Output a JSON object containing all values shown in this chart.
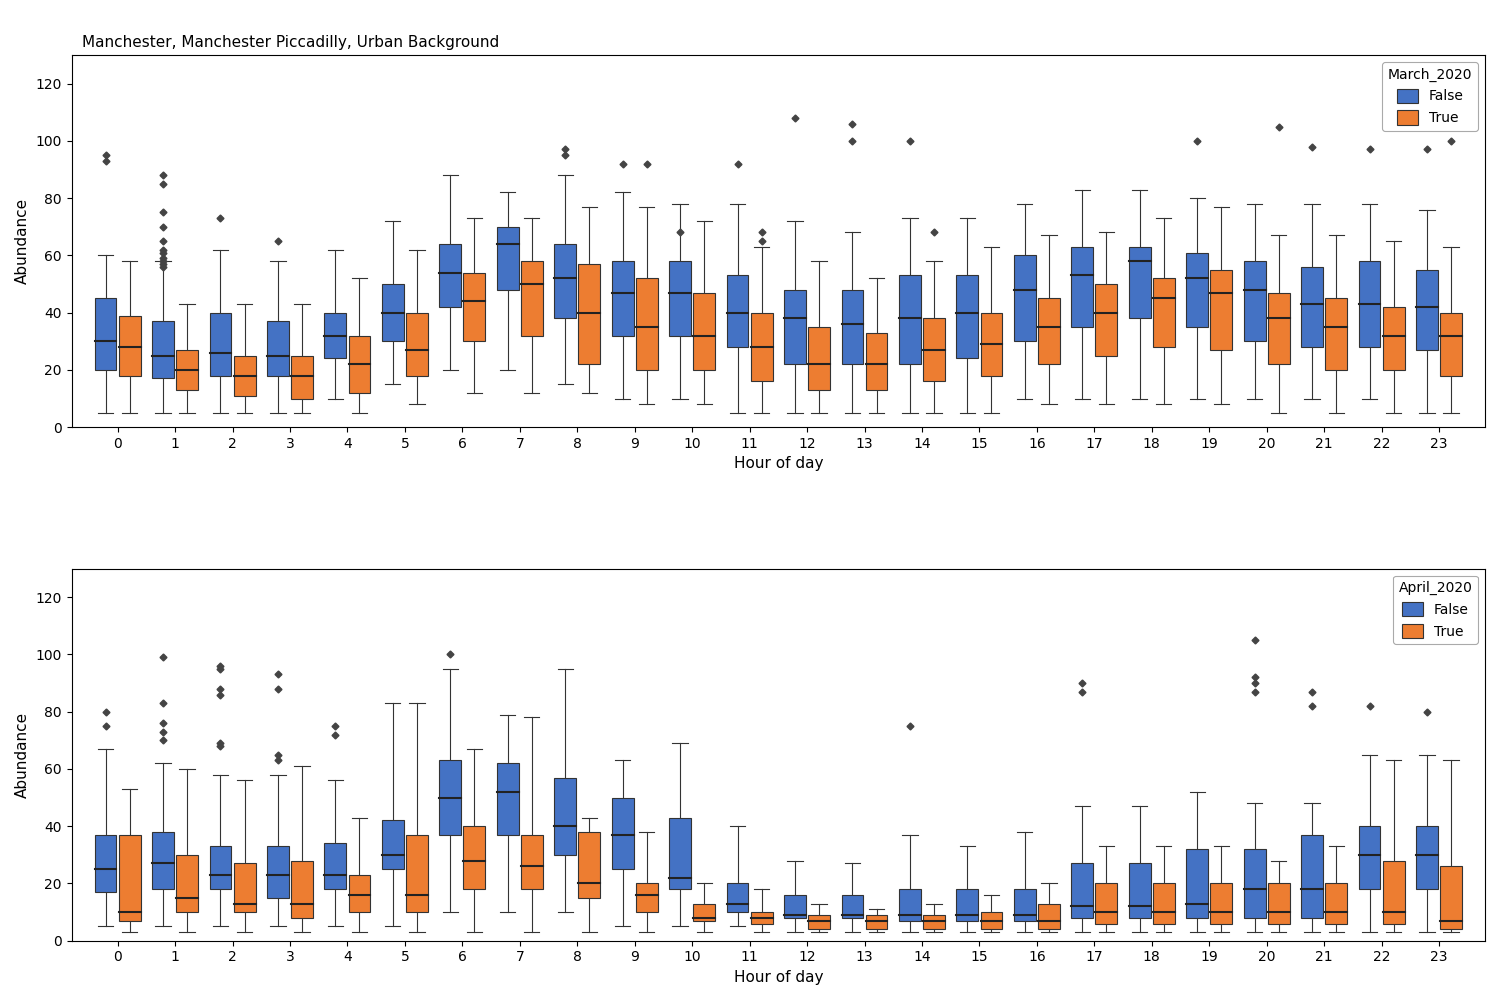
{
  "title": "Manchester, Manchester Piccadilly, Urban Background",
  "subplot1_title": "March_2020",
  "subplot2_title": "April_2020",
  "xlabel": "Hour of day",
  "ylabel": "Abundance",
  "colors": [
    "#4472C4",
    "#ED7D31"
  ],
  "hours": [
    0,
    1,
    2,
    3,
    4,
    5,
    6,
    7,
    8,
    9,
    10,
    11,
    12,
    13,
    14,
    15,
    16,
    17,
    18,
    19,
    20,
    21,
    22,
    23
  ],
  "march_false_whislo": [
    5,
    5,
    5,
    5,
    10,
    15,
    20,
    20,
    15,
    10,
    10,
    5,
    5,
    5,
    5,
    5,
    10,
    10,
    10,
    10,
    10,
    10,
    10,
    5
  ],
  "march_false_q1": [
    20,
    17,
    18,
    18,
    24,
    30,
    42,
    48,
    38,
    32,
    32,
    28,
    22,
    22,
    22,
    24,
    30,
    35,
    38,
    35,
    30,
    28,
    28,
    27
  ],
  "march_false_med": [
    30,
    25,
    26,
    25,
    32,
    40,
    54,
    64,
    52,
    47,
    47,
    40,
    38,
    36,
    38,
    40,
    48,
    53,
    58,
    52,
    48,
    43,
    43,
    42
  ],
  "march_false_q3": [
    45,
    37,
    40,
    37,
    40,
    50,
    64,
    70,
    64,
    58,
    58,
    53,
    48,
    48,
    53,
    53,
    60,
    63,
    63,
    61,
    58,
    56,
    58,
    55
  ],
  "march_false_whishi": [
    60,
    58,
    62,
    58,
    62,
    72,
    88,
    82,
    88,
    82,
    78,
    78,
    72,
    68,
    73,
    73,
    78,
    83,
    83,
    80,
    78,
    78,
    78,
    76
  ],
  "march_false_fliers": [
    [
      95,
      93
    ],
    [
      85,
      88,
      75,
      70,
      65,
      62,
      61,
      59,
      58,
      57,
      56
    ],
    [
      73
    ],
    [
      65
    ],
    [],
    [],
    [],
    [],
    [
      97,
      95
    ],
    [
      92
    ],
    [
      68
    ],
    [
      92
    ],
    [
      108
    ],
    [
      100,
      106
    ],
    [
      100
    ],
    [],
    [],
    [],
    [],
    [
      100
    ],
    [],
    [
      98
    ],
    [
      97
    ],
    [
      97
    ]
  ],
  "march_true_whislo": [
    5,
    5,
    5,
    5,
    5,
    8,
    12,
    12,
    12,
    8,
    8,
    5,
    5,
    5,
    5,
    5,
    8,
    8,
    8,
    8,
    5,
    5,
    5,
    5
  ],
  "march_true_q1": [
    18,
    13,
    11,
    10,
    12,
    18,
    30,
    32,
    22,
    20,
    20,
    16,
    13,
    13,
    16,
    18,
    22,
    25,
    28,
    27,
    22,
    20,
    20,
    18
  ],
  "march_true_med": [
    28,
    20,
    18,
    18,
    22,
    27,
    44,
    50,
    40,
    35,
    32,
    28,
    22,
    22,
    27,
    29,
    35,
    40,
    45,
    47,
    38,
    35,
    32,
    32
  ],
  "march_true_q3": [
    39,
    27,
    25,
    25,
    32,
    40,
    54,
    58,
    57,
    52,
    47,
    40,
    35,
    33,
    38,
    40,
    45,
    50,
    52,
    55,
    47,
    45,
    42,
    40
  ],
  "march_true_whishi": [
    58,
    43,
    43,
    43,
    52,
    62,
    73,
    73,
    77,
    77,
    72,
    63,
    58,
    52,
    58,
    63,
    67,
    68,
    73,
    77,
    67,
    67,
    65,
    63
  ],
  "march_true_fliers": [
    [],
    [],
    [],
    [],
    [],
    [],
    [],
    [],
    [],
    [
      92
    ],
    [],
    [
      68,
      65
    ],
    [],
    [],
    [
      68
    ],
    [],
    [],
    [],
    [],
    [],
    [
      105
    ],
    [],
    [],
    [
      100
    ]
  ],
  "april_false_whislo": [
    5,
    5,
    5,
    5,
    5,
    5,
    10,
    10,
    10,
    5,
    5,
    5,
    3,
    3,
    3,
    3,
    3,
    3,
    3,
    3,
    3,
    3,
    3,
    3
  ],
  "april_false_q1": [
    17,
    18,
    18,
    15,
    18,
    25,
    37,
    37,
    30,
    25,
    18,
    10,
    8,
    8,
    7,
    7,
    7,
    8,
    8,
    8,
    8,
    8,
    18,
    18
  ],
  "april_false_med": [
    25,
    27,
    23,
    23,
    23,
    30,
    50,
    52,
    40,
    37,
    22,
    13,
    9,
    9,
    9,
    9,
    9,
    12,
    12,
    13,
    18,
    18,
    30,
    30
  ],
  "april_false_q3": [
    37,
    38,
    33,
    33,
    34,
    42,
    63,
    62,
    57,
    50,
    43,
    20,
    16,
    16,
    18,
    18,
    18,
    27,
    27,
    32,
    32,
    37,
    40,
    40
  ],
  "april_false_whishi": [
    67,
    62,
    58,
    58,
    56,
    83,
    95,
    79,
    95,
    63,
    69,
    40,
    28,
    27,
    37,
    33,
    38,
    47,
    47,
    52,
    48,
    48,
    65,
    65
  ],
  "april_false_fliers": [
    [
      75,
      80
    ],
    [
      83,
      99,
      76,
      73,
      70
    ],
    [
      88,
      96,
      95,
      86,
      69,
      68
    ],
    [
      93,
      88,
      65,
      63
    ],
    [
      75,
      72
    ],
    [],
    [
      100
    ],
    [],
    [],
    [],
    [],
    [],
    [],
    [],
    [
      75
    ],
    [],
    [],
    [
      90,
      87
    ],
    [],
    [],
    [
      90,
      105,
      92,
      87
    ],
    [
      87,
      82
    ],
    [
      82
    ],
    [
      80
    ]
  ],
  "april_true_whislo": [
    3,
    3,
    3,
    3,
    3,
    3,
    3,
    3,
    3,
    3,
    3,
    3,
    3,
    3,
    3,
    3,
    3,
    3,
    3,
    3,
    3,
    3,
    3,
    3
  ],
  "april_true_q1": [
    7,
    10,
    10,
    8,
    10,
    10,
    18,
    18,
    15,
    10,
    7,
    6,
    4,
    4,
    4,
    4,
    4,
    6,
    6,
    6,
    6,
    6,
    6,
    4
  ],
  "april_true_med": [
    10,
    15,
    13,
    13,
    16,
    16,
    28,
    26,
    20,
    16,
    8,
    8,
    7,
    7,
    7,
    7,
    7,
    10,
    10,
    10,
    10,
    10,
    10,
    7
  ],
  "april_true_q3": [
    37,
    30,
    27,
    28,
    23,
    37,
    40,
    37,
    38,
    20,
    13,
    10,
    9,
    9,
    9,
    10,
    13,
    20,
    20,
    20,
    20,
    20,
    28,
    26
  ],
  "april_true_whishi": [
    53,
    60,
    56,
    61,
    43,
    83,
    67,
    78,
    43,
    38,
    20,
    18,
    13,
    11,
    13,
    16,
    20,
    33,
    33,
    33,
    28,
    33,
    63,
    63
  ],
  "april_true_fliers": [
    [],
    [],
    [],
    [],
    [],
    [],
    [],
    [],
    [],
    [],
    [],
    [],
    [],
    [],
    [],
    [],
    [],
    [],
    [],
    [],
    [],
    [],
    [],
    []
  ]
}
